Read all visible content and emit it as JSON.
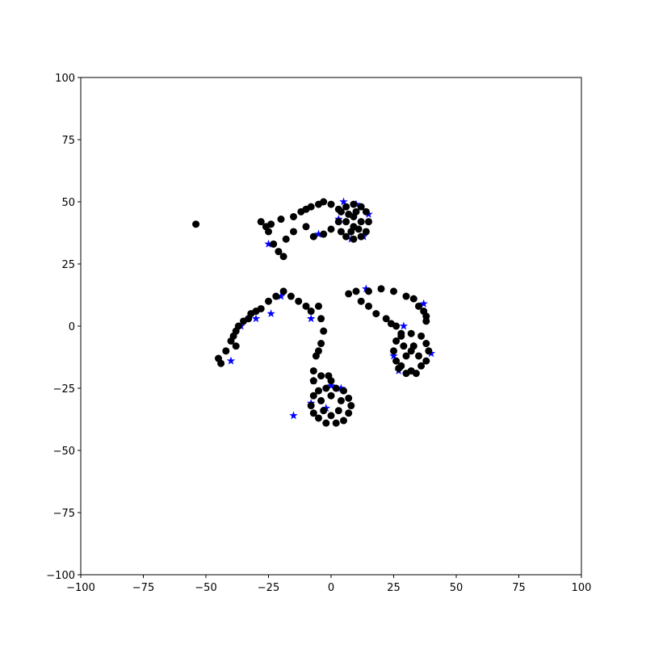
{
  "chart_data": {
    "type": "scatter",
    "xlim": [
      -100,
      100
    ],
    "ylim": [
      -100,
      100
    ],
    "xticks": [
      {
        "value": -100,
        "label": "−100"
      },
      {
        "value": -75,
        "label": "−75"
      },
      {
        "value": -50,
        "label": "−50"
      },
      {
        "value": -25,
        "label": "−25"
      },
      0,
      25,
      50,
      75,
      100
    ],
    "yticks": [
      {
        "value": -100,
        "label": "−100"
      },
      {
        "value": -75,
        "label": "−75"
      },
      {
        "value": -50,
        "label": "−50"
      },
      {
        "value": -25,
        "label": "−25"
      },
      0,
      25,
      50,
      75,
      100
    ],
    "grid": false,
    "series": [
      {
        "marker": "star",
        "color": "#0000ff",
        "x": [
          -40,
          -24,
          -30,
          -25,
          -15,
          -5,
          5,
          10,
          15,
          13,
          8,
          3,
          -7,
          -8,
          -2,
          0,
          4,
          -8,
          25,
          27,
          40,
          37,
          29,
          14,
          -20,
          -36
        ],
        "y": [
          -14,
          5,
          3,
          33,
          -36,
          37,
          50,
          49,
          45,
          36,
          35,
          43,
          -22,
          3,
          -33,
          -24,
          -25,
          -31,
          -12,
          -18,
          -11,
          9,
          0,
          15,
          12,
          0
        ]
      },
      {
        "marker": "circle",
        "color": "#000000",
        "x": [
          -54,
          -28,
          -26,
          -24,
          -20,
          -15,
          -12,
          -10,
          -8,
          -5,
          -3,
          0,
          3,
          -25,
          -23,
          -21,
          -19,
          -18,
          -15,
          -10,
          -7,
          -3,
          0,
          3,
          4,
          6,
          9,
          12,
          14,
          15,
          14,
          12,
          9,
          6,
          4,
          6,
          9,
          12,
          9,
          7,
          11,
          8,
          10,
          -45,
          -44,
          -42,
          -40,
          -39,
          -38,
          -37,
          -35,
          -33,
          -32,
          -30,
          -28,
          -25,
          -22,
          -19,
          -16,
          -13,
          -10,
          -8,
          -38,
          -5,
          -4,
          -3,
          -4,
          -5,
          -6,
          -7,
          -7,
          -4,
          -1,
          0,
          -8,
          -7,
          -5,
          -2,
          2,
          5,
          7,
          8,
          7,
          5,
          2,
          -2,
          -5,
          -7,
          -4,
          0,
          4,
          -3,
          3,
          0,
          7,
          10,
          15,
          20,
          25,
          30,
          33,
          35,
          37,
          38,
          38,
          12,
          15,
          18,
          22,
          24,
          26,
          28,
          25,
          26,
          28,
          32,
          36,
          38,
          39,
          38,
          36,
          32,
          28,
          26,
          29,
          33,
          35,
          30,
          32,
          34,
          30,
          27
        ],
        "y": [
          41,
          42,
          40,
          41,
          43,
          44,
          46,
          47,
          48,
          49,
          50,
          49,
          47,
          38,
          33,
          30,
          28,
          35,
          38,
          40,
          36,
          37,
          39,
          42,
          46,
          48,
          49,
          48,
          46,
          42,
          38,
          36,
          35,
          36,
          38,
          42,
          44,
          42,
          40,
          45,
          39,
          38,
          46,
          -13,
          -15,
          -10,
          -6,
          -4,
          -2,
          0,
          2,
          3,
          5,
          6,
          7,
          10,
          12,
          14,
          12,
          10,
          8,
          6,
          -8,
          8,
          3,
          -2,
          -7,
          -10,
          -12,
          -18,
          -22,
          -20,
          -20,
          -22,
          -32,
          -28,
          -26,
          -25,
          -25,
          -26,
          -29,
          -32,
          -35,
          -38,
          -39,
          -39,
          -37,
          -35,
          -30,
          -28,
          -30,
          -34,
          -34,
          -36,
          13,
          14,
          14,
          15,
          14,
          12,
          11,
          8,
          6,
          4,
          2,
          10,
          8,
          5,
          3,
          1,
          0,
          -3,
          -10,
          -6,
          -4,
          -3,
          -4,
          -7,
          -10,
          -14,
          -16,
          -18,
          -16,
          -14,
          -8,
          -8,
          -12,
          -12,
          -10,
          -19,
          -19,
          -17
        ]
      }
    ]
  }
}
